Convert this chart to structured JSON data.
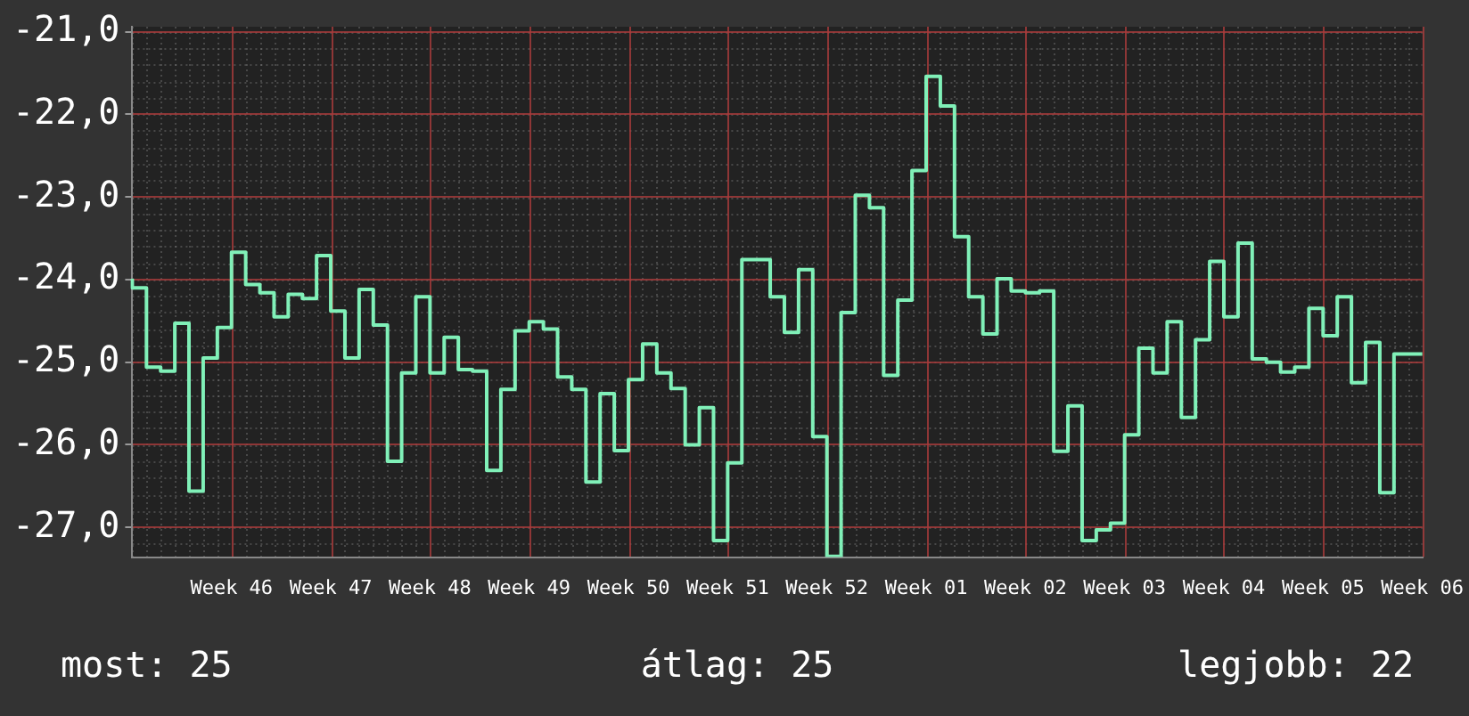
{
  "chart_data": {
    "type": "step",
    "color": "#80f0b8",
    "categories": [
      null,
      null,
      null,
      null,
      null,
      null,
      null,
      "Week 46",
      null,
      null,
      null,
      null,
      null,
      null,
      "Week 47",
      null,
      null,
      null,
      null,
      null,
      null,
      "Week 48",
      null,
      null,
      null,
      null,
      null,
      null,
      "Week 49",
      null,
      null,
      null,
      null,
      null,
      null,
      "Week 50",
      null,
      null,
      null,
      null,
      null,
      null,
      "Week 51",
      null,
      null,
      null,
      null,
      null,
      null,
      "Week 52",
      null,
      null,
      null,
      null,
      null,
      null,
      "Week 01",
      null,
      null,
      null,
      null,
      null,
      null,
      "Week 02",
      null,
      null,
      null,
      null,
      null,
      null,
      "Week 03",
      null,
      null,
      null,
      null,
      null,
      null,
      "Week 04",
      null,
      null,
      null,
      null,
      null,
      null,
      "Week 05",
      null,
      null,
      null,
      null,
      null,
      null,
      "Week 06"
    ],
    "values": [
      -23.99,
      -24.1,
      -25.06,
      -25.11,
      -24.53,
      -26.56,
      -24.95,
      -24.58,
      -23.67,
      -24.06,
      -24.16,
      -24.45,
      -24.18,
      -24.23,
      -23.71,
      -24.38,
      -24.95,
      -24.12,
      -24.55,
      -26.2,
      -25.13,
      -24.21,
      -25.13,
      -24.7,
      -25.09,
      -25.11,
      -26.31,
      -25.33,
      -24.62,
      -24.51,
      -24.6,
      -25.18,
      -25.33,
      -26.45,
      -25.38,
      -26.07,
      -25.21,
      -24.78,
      -25.13,
      -25.32,
      -26.0,
      -25.55,
      -27.16,
      -26.22,
      -23.76,
      -23.76,
      -24.21,
      -24.64,
      -23.88,
      -25.9,
      -27.35,
      -24.4,
      -22.98,
      -23.13,
      -25.16,
      -24.25,
      -22.68,
      -21.54,
      -21.9,
      -23.48,
      -24.21,
      -24.66,
      -23.99,
      -24.14,
      -24.16,
      -24.14,
      -26.08,
      -25.53,
      -27.16,
      -27.03,
      -26.95,
      -25.88,
      -24.83,
      -25.13,
      -24.51,
      -25.67,
      -24.73,
      -23.78,
      -24.45,
      -23.56,
      -24.96,
      -25.0,
      -25.12,
      -25.06,
      -24.35,
      -24.68,
      -24.21,
      -25.25,
      -24.76,
      -26.58,
      -24.9,
      -24.9
    ],
    "ylim": [
      -27.36,
      -20.94
    ],
    "yticks": [
      {
        "value": -27,
        "label": "-27,0"
      },
      {
        "value": -26,
        "label": "-26,0"
      },
      {
        "value": -25,
        "label": "-25,0"
      },
      {
        "value": -24,
        "label": "-24,0"
      },
      {
        "value": -23,
        "label": "-23,0"
      },
      {
        "value": -22,
        "label": "-22,0"
      },
      {
        "value": -21,
        "label": "-21,0"
      }
    ],
    "grid": true,
    "legend": false,
    "annotations": [
      "most: 25",
      "átlag: 25",
      "legjobb: 22"
    ]
  }
}
